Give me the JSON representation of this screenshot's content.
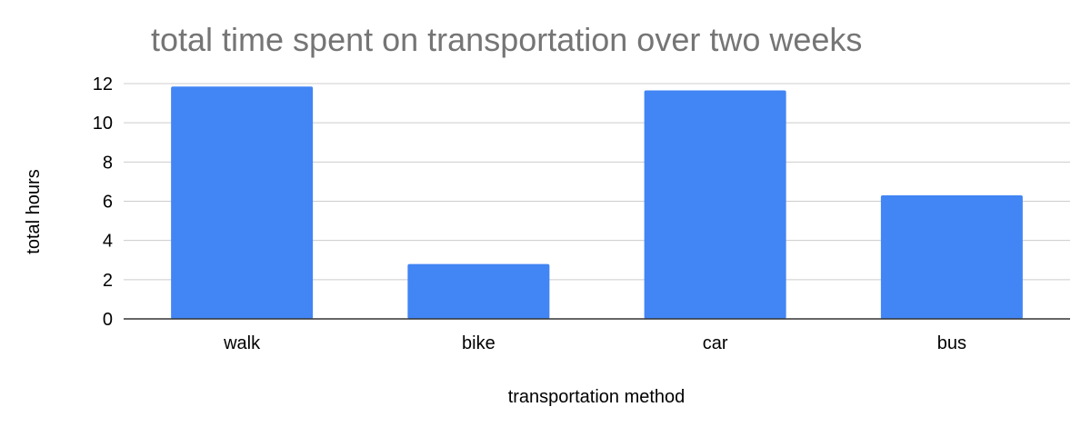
{
  "chart_data": {
    "type": "bar",
    "title": "total time spent on transportation over two weeks",
    "xlabel": "transportation method",
    "ylabel": "total hours",
    "categories": [
      "walk",
      "bike",
      "car",
      "bus"
    ],
    "values": [
      11.85,
      2.8,
      11.65,
      6.3
    ],
    "ylim": [
      0,
      12
    ],
    "yticks": [
      0,
      2,
      4,
      6,
      8,
      10,
      12
    ],
    "grid": true,
    "legend": "none",
    "colors": {
      "bar": "#4285f4",
      "grid": "#cccccc",
      "title": "#757575"
    }
  }
}
